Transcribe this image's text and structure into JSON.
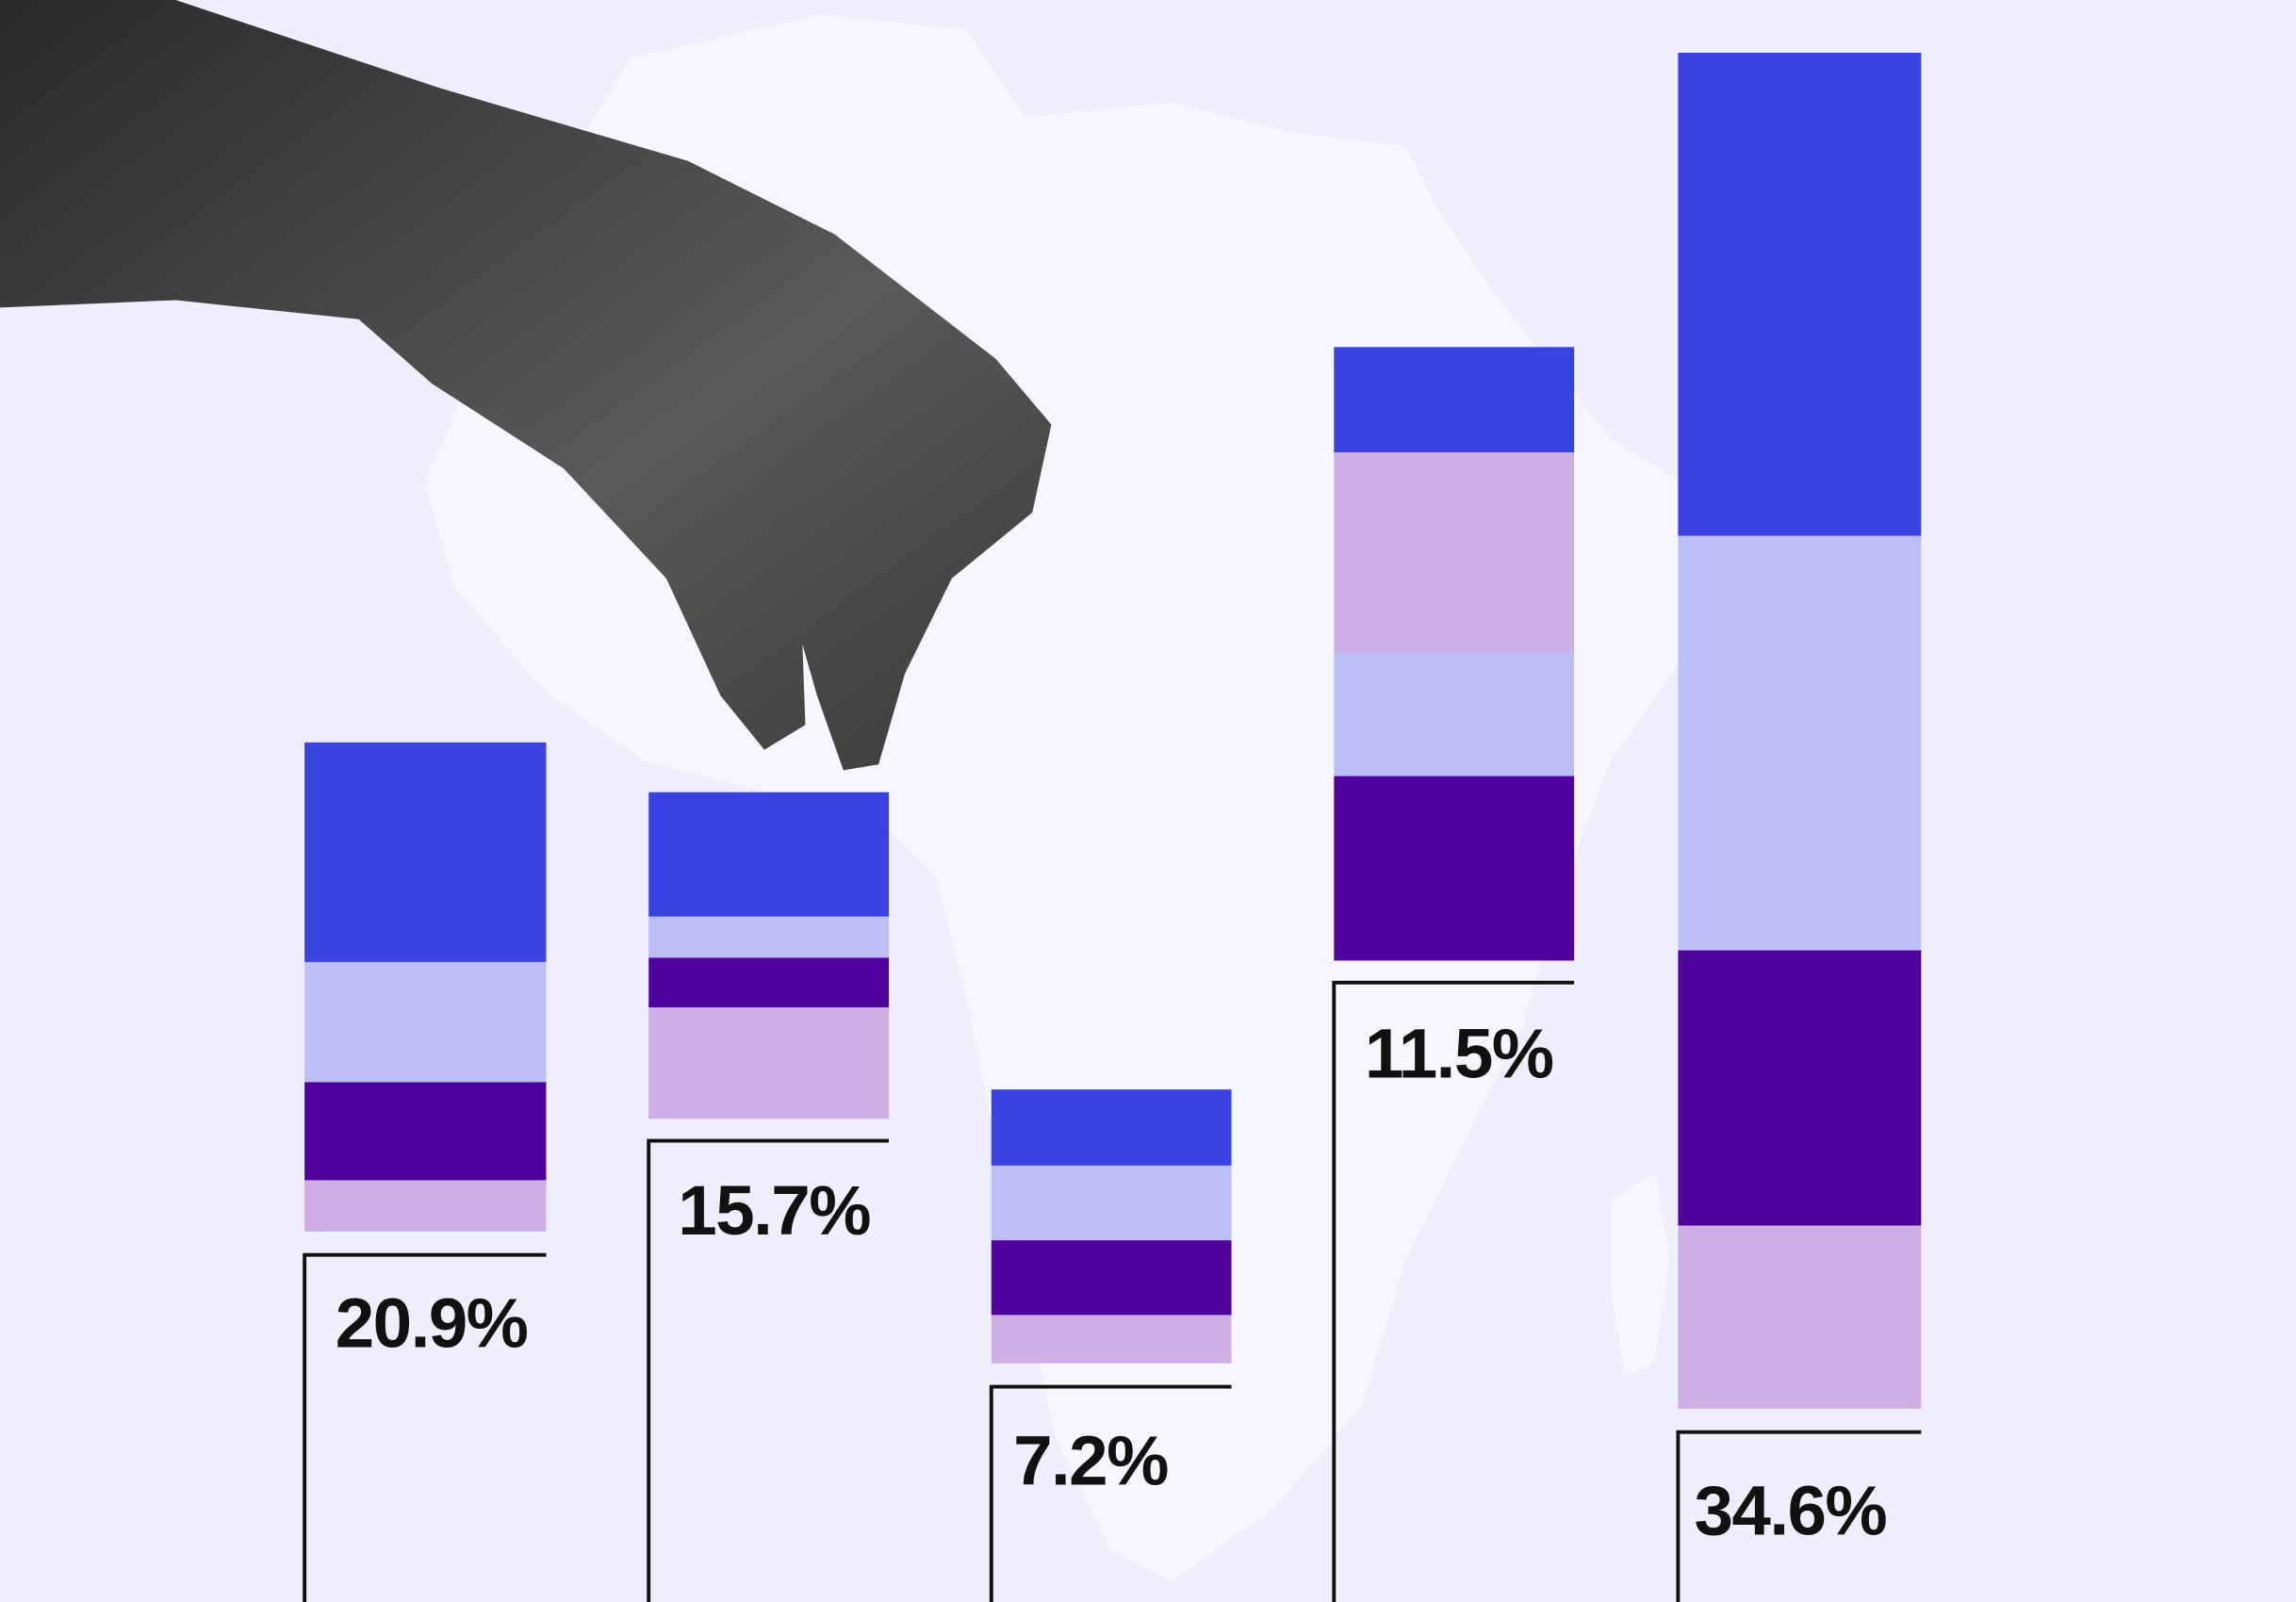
{
  "bars": [
    {
      "label": "20.9%"
    },
    {
      "label": "15.7%"
    },
    {
      "label": "7.2%"
    },
    {
      "label": "11.5%"
    },
    {
      "label": "34.6%"
    }
  ]
}
